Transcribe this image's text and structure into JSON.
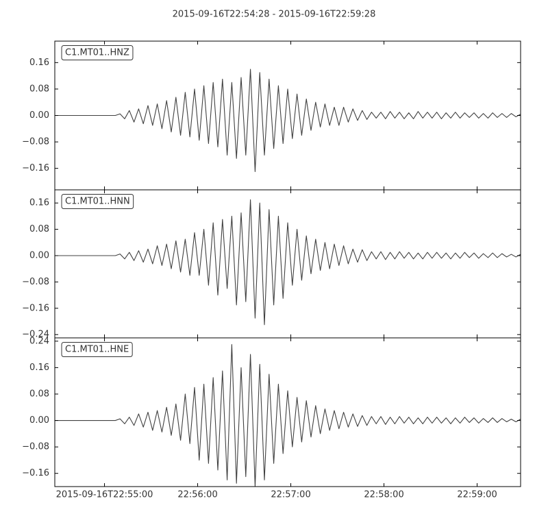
{
  "title": "2015-09-16T22:54:28  -  2015-09-16T22:59:28",
  "chart_data": [
    {
      "type": "line",
      "title": "C1.MT01..HNZ",
      "color": "#404040",
      "x": [
        0,
        3,
        6,
        9,
        12,
        15,
        18,
        21,
        24,
        27,
        30,
        33,
        36,
        39,
        42,
        45,
        48,
        51,
        54,
        57,
        60,
        63,
        66,
        69,
        72,
        75,
        78,
        81,
        84,
        87,
        90,
        93,
        96,
        99,
        102,
        105,
        108,
        111,
        114,
        117,
        120,
        123,
        126,
        129,
        132,
        135,
        138,
        141,
        144,
        147,
        150,
        153,
        156,
        159,
        162,
        165,
        168,
        171,
        174,
        177,
        180,
        183,
        186,
        189,
        192,
        195,
        198,
        201,
        204,
        207,
        210,
        213,
        216,
        219,
        222,
        225,
        228,
        231,
        234,
        237,
        240,
        243,
        246,
        249,
        252,
        255,
        258,
        261,
        264,
        267,
        270,
        273,
        276,
        279,
        282,
        285,
        288,
        291,
        294,
        297,
        300
      ],
      "values": [
        0,
        0,
        0,
        0,
        0,
        0,
        0,
        0,
        0,
        0,
        0,
        0,
        0,
        0,
        0.005,
        -0.01,
        0.015,
        -0.02,
        0.02,
        -0.025,
        0.03,
        -0.03,
        0.035,
        -0.04,
        0.045,
        -0.05,
        0.055,
        -0.06,
        0.07,
        -0.065,
        0.08,
        -0.075,
        0.09,
        -0.085,
        0.1,
        -0.095,
        0.11,
        -0.12,
        0.1,
        -0.13,
        0.115,
        -0.12,
        0.14,
        -0.17,
        0.13,
        -0.12,
        0.11,
        -0.1,
        0.09,
        -0.085,
        0.08,
        -0.07,
        0.065,
        -0.06,
        0.05,
        -0.045,
        0.04,
        -0.035,
        0.035,
        -0.03,
        0.025,
        -0.03,
        0.025,
        -0.02,
        0.02,
        -0.015,
        0.015,
        -0.012,
        0.01,
        -0.008,
        0.01,
        -0.01,
        0.012,
        -0.008,
        0.01,
        -0.01,
        0.008,
        -0.01,
        0.012,
        -0.008,
        0.01,
        -0.008,
        0.01,
        -0.01,
        0.008,
        -0.008,
        0.01,
        -0.008,
        0.008,
        -0.006,
        0.008,
        -0.008,
        0.006,
        -0.008,
        0.008,
        -0.006,
        0.006,
        -0.006,
        0.006,
        -0.004,
        0.004
      ],
      "xlim": [
        0,
        300
      ],
      "ylim": [
        -0.225,
        0.225
      ],
      "yticks": [
        {
          "value": -0.16,
          "label": "−0.16"
        },
        {
          "value": -0.08,
          "label": "−0.08"
        },
        {
          "value": 0,
          "label": "0.00"
        },
        {
          "value": 0.08,
          "label": "0.08"
        },
        {
          "value": 0.16,
          "label": "0.16"
        }
      ]
    },
    {
      "type": "line",
      "title": "C1.MT01..HNN",
      "color": "#404040",
      "x": [
        0,
        3,
        6,
        9,
        12,
        15,
        18,
        21,
        24,
        27,
        30,
        33,
        36,
        39,
        42,
        45,
        48,
        51,
        54,
        57,
        60,
        63,
        66,
        69,
        72,
        75,
        78,
        81,
        84,
        87,
        90,
        93,
        96,
        99,
        102,
        105,
        108,
        111,
        114,
        117,
        120,
        123,
        126,
        129,
        132,
        135,
        138,
        141,
        144,
        147,
        150,
        153,
        156,
        159,
        162,
        165,
        168,
        171,
        174,
        177,
        180,
        183,
        186,
        189,
        192,
        195,
        198,
        201,
        204,
        207,
        210,
        213,
        216,
        219,
        222,
        225,
        228,
        231,
        234,
        237,
        240,
        243,
        246,
        249,
        252,
        255,
        258,
        261,
        264,
        267,
        270,
        273,
        276,
        279,
        282,
        285,
        288,
        291,
        294,
        297,
        300
      ],
      "values": [
        0,
        0,
        0,
        0,
        0,
        0,
        0,
        0,
        0,
        0,
        0,
        0,
        0,
        0,
        0.005,
        -0.01,
        0.01,
        -0.015,
        0.015,
        -0.02,
        0.02,
        -0.025,
        0.03,
        -0.03,
        0.035,
        -0.04,
        0.045,
        -0.05,
        0.05,
        -0.06,
        0.07,
        -0.06,
        0.08,
        -0.09,
        0.1,
        -0.12,
        0.11,
        -0.1,
        0.12,
        -0.15,
        0.13,
        -0.14,
        0.17,
        -0.19,
        0.16,
        -0.21,
        0.14,
        -0.15,
        0.12,
        -0.13,
        0.1,
        -0.09,
        0.08,
        -0.075,
        0.06,
        -0.055,
        0.05,
        -0.045,
        0.04,
        -0.04,
        0.035,
        -0.03,
        0.03,
        -0.025,
        0.02,
        -0.02,
        0.018,
        -0.015,
        0.012,
        -0.01,
        0.012,
        -0.012,
        0.01,
        -0.01,
        0.012,
        -0.008,
        0.01,
        -0.01,
        0.008,
        -0.01,
        0.01,
        -0.008,
        0.01,
        -0.008,
        0.008,
        -0.01,
        0.008,
        -0.008,
        0.01,
        -0.006,
        0.008,
        -0.008,
        0.006,
        -0.006,
        0.008,
        -0.006,
        0.006,
        -0.004,
        0.004,
        -0.004,
        0.004
      ],
      "xlim": [
        0,
        300
      ],
      "ylim": [
        -0.25,
        0.2
      ],
      "yticks": [
        {
          "value": -0.24,
          "label": "−0.24"
        },
        {
          "value": -0.16,
          "label": "−0.16"
        },
        {
          "value": -0.08,
          "label": "−0.08"
        },
        {
          "value": 0,
          "label": "0.00"
        },
        {
          "value": 0.08,
          "label": "0.08"
        },
        {
          "value": 0.16,
          "label": "0.16"
        }
      ]
    },
    {
      "type": "line",
      "title": "C1.MT01..HNE",
      "color": "#404040",
      "x": [
        0,
        3,
        6,
        9,
        12,
        15,
        18,
        21,
        24,
        27,
        30,
        33,
        36,
        39,
        42,
        45,
        48,
        51,
        54,
        57,
        60,
        63,
        66,
        69,
        72,
        75,
        78,
        81,
        84,
        87,
        90,
        93,
        96,
        99,
        102,
        105,
        108,
        111,
        114,
        117,
        120,
        123,
        126,
        129,
        132,
        135,
        138,
        141,
        144,
        147,
        150,
        153,
        156,
        159,
        162,
        165,
        168,
        171,
        174,
        177,
        180,
        183,
        186,
        189,
        192,
        195,
        198,
        201,
        204,
        207,
        210,
        213,
        216,
        219,
        222,
        225,
        228,
        231,
        234,
        237,
        240,
        243,
        246,
        249,
        252,
        255,
        258,
        261,
        264,
        267,
        270,
        273,
        276,
        279,
        282,
        285,
        288,
        291,
        294,
        297,
        300
      ],
      "values": [
        0,
        0,
        0,
        0,
        0,
        0,
        0,
        0,
        0,
        0,
        0,
        0,
        0,
        0,
        0.005,
        -0.01,
        0.01,
        -0.015,
        0.02,
        -0.02,
        0.025,
        -0.03,
        0.03,
        -0.035,
        0.04,
        -0.045,
        0.05,
        -0.06,
        0.08,
        -0.07,
        0.1,
        -0.12,
        0.11,
        -0.13,
        0.13,
        -0.15,
        0.15,
        -0.18,
        0.23,
        -0.19,
        0.16,
        -0.17,
        0.2,
        -0.2,
        0.17,
        -0.18,
        0.14,
        -0.13,
        0.11,
        -0.1,
        0.09,
        -0.08,
        0.07,
        -0.065,
        0.06,
        -0.05,
        0.045,
        -0.04,
        0.035,
        -0.03,
        0.03,
        -0.025,
        0.025,
        -0.02,
        0.02,
        -0.018,
        0.015,
        -0.015,
        0.012,
        -0.01,
        0.012,
        -0.012,
        0.01,
        -0.01,
        0.012,
        -0.008,
        0.01,
        -0.01,
        0.008,
        -0.01,
        0.01,
        -0.008,
        0.01,
        -0.008,
        0.008,
        -0.01,
        0.008,
        -0.008,
        0.01,
        -0.006,
        0.008,
        -0.008,
        0.006,
        -0.006,
        0.008,
        -0.006,
        0.006,
        -0.004,
        0.004,
        -0.004,
        0.004
      ],
      "xlim": [
        0,
        300
      ],
      "ylim": [
        -0.2,
        0.25
      ],
      "yticks": [
        {
          "value": -0.16,
          "label": "−0.16"
        },
        {
          "value": -0.08,
          "label": "−0.08"
        },
        {
          "value": 0,
          "label": "0.00"
        },
        {
          "value": 0.08,
          "label": "0.08"
        },
        {
          "value": 0.16,
          "label": "0.16"
        },
        {
          "value": 0.24,
          "label": "0.24"
        }
      ],
      "xticks": [
        {
          "value": 32,
          "label": "2015-09-16T22:55:00"
        },
        {
          "value": 92,
          "label": "22:56:00"
        },
        {
          "value": 152,
          "label": "22:57:00"
        },
        {
          "value": 212,
          "label": "22:58:00"
        },
        {
          "value": 272,
          "label": "22:59:00"
        }
      ]
    }
  ]
}
